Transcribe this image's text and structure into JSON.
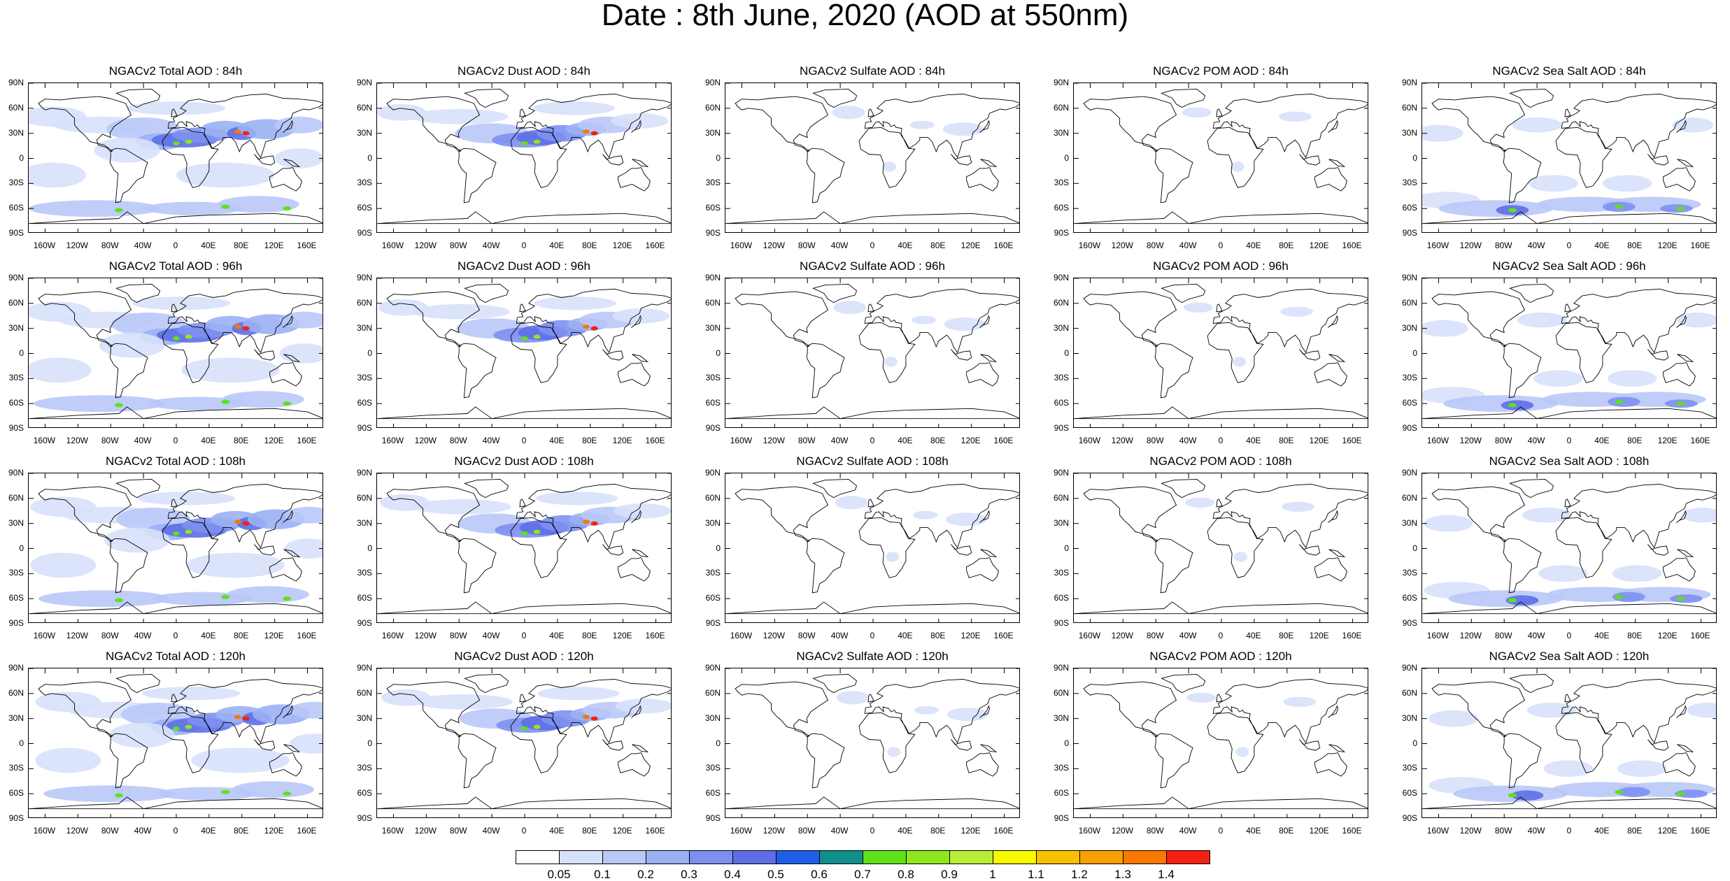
{
  "title": "Date : 8th June, 2020 (AOD at 550nm)",
  "latitude_ticks": [
    "90N",
    "60N",
    "30N",
    "0",
    "30S",
    "60S",
    "90S"
  ],
  "longitude_ticks": [
    "160W",
    "120W",
    "80W",
    "40W",
    "0",
    "40E",
    "80E",
    "120E",
    "160E"
  ],
  "panels": [
    [
      "NGACv2 Total AOD : 84h",
      "NGACv2 Dust AOD : 84h",
      "NGACv2 Sulfate AOD : 84h",
      "NGACv2 POM AOD : 84h",
      "NGACv2 Sea Salt AOD : 84h"
    ],
    [
      "NGACv2 Total AOD : 96h",
      "NGACv2 Dust AOD : 96h",
      "NGACv2 Sulfate AOD : 96h",
      "NGACv2 POM AOD : 96h",
      "NGACv2 Sea Salt AOD : 96h"
    ],
    [
      "NGACv2 Total AOD : 108h",
      "NGACv2 Dust AOD : 108h",
      "NGACv2 Sulfate AOD : 108h",
      "NGACv2 POM AOD : 108h",
      "NGACv2 Sea Salt AOD : 108h"
    ],
    [
      "NGACv2 Total AOD : 120h",
      "NGACv2 Dust AOD : 120h",
      "NGACv2 Sulfate AOD : 120h",
      "NGACv2 POM AOD : 120h",
      "NGACv2 Sea Salt  AOD : 120h"
    ]
  ],
  "colorbar": {
    "labels": [
      "0.05",
      "0.1",
      "0.2",
      "0.3",
      "0.4",
      "0.5",
      "0.6",
      "0.7",
      "0.8",
      "0.9",
      "1",
      "1.1",
      "1.2",
      "1.3",
      "1.4"
    ],
    "colors": [
      "#ffffff",
      "#d7e1fb",
      "#b9c8f8",
      "#9bb0f5",
      "#7d90ef",
      "#5e6fe6",
      "#1f5fe8",
      "#118f8a",
      "#5ee11b",
      "#8ee81d",
      "#b8ee3a",
      "#f8f800",
      "#f8c000",
      "#f8a000",
      "#f87800",
      "#f42010"
    ]
  },
  "colors": {
    "land_outline": "#000000",
    "aod_light": "#d7e1fb",
    "aod_mid": "#9bb0f5",
    "aod_high": "#5e6fe6"
  }
}
